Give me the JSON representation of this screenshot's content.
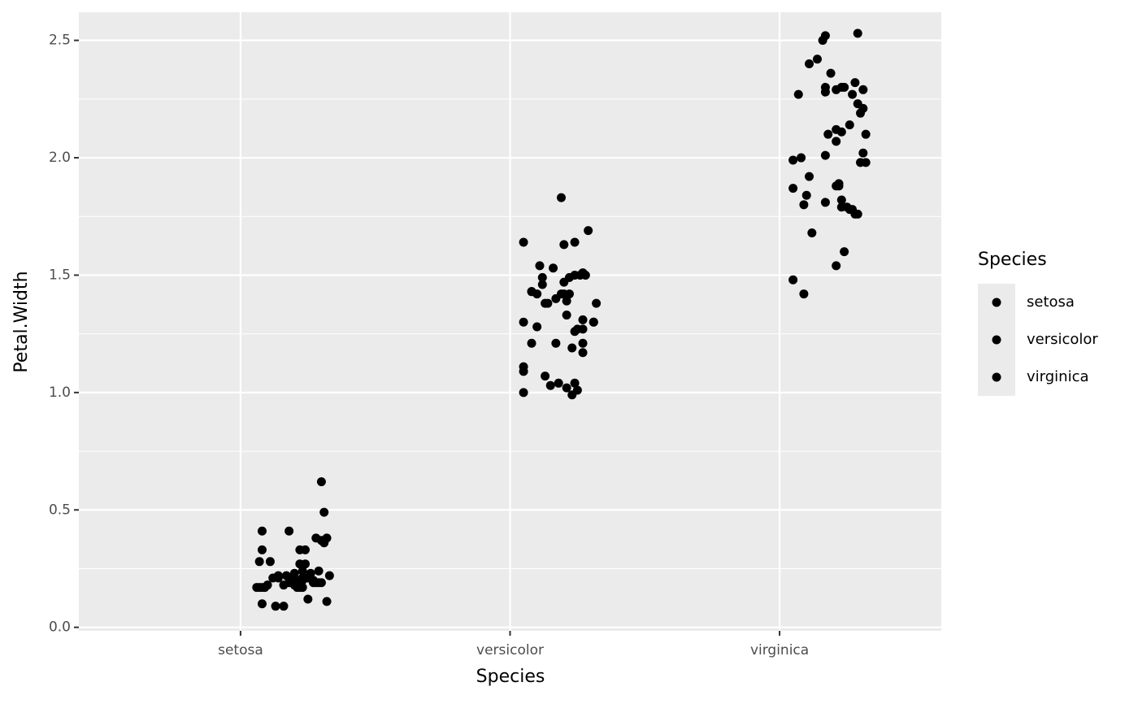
{
  "chart_data": {
    "type": "scatter",
    "x_label": "Species",
    "y_label": "Petal.Width",
    "legend_title": "Species",
    "legend_position": "right",
    "grid": true,
    "xlim": [
      0.4,
      3.6
    ],
    "ylim": [
      -0.015,
      2.62
    ],
    "xticks": [
      {
        "value": 1,
        "label": "setosa"
      },
      {
        "value": 2,
        "label": "versicolor"
      },
      {
        "value": 3,
        "label": "virginica"
      }
    ],
    "yticks": [
      {
        "value": 0,
        "label": "0.0"
      },
      {
        "value": 0.5,
        "label": "0.5"
      },
      {
        "value": 1,
        "label": "1.0"
      },
      {
        "value": 1.5,
        "label": "1.5"
      },
      {
        "value": 2,
        "label": "2.0"
      },
      {
        "value": 2.5,
        "label": "2.5"
      }
    ],
    "series": [
      {
        "name": "setosa",
        "color": "#000000",
        "x": [
          1.3,
          1.31,
          1.08,
          1.18,
          1.28,
          1.3,
          1.32,
          1.31,
          1.07,
          1.11,
          1.08,
          1.22,
          1.24,
          1.22,
          1.24,
          1.14,
          1.12,
          1.17,
          1.2,
          1.26,
          1.29,
          1.33,
          1.23,
          1.28,
          1.2,
          1.08,
          1.1,
          1.06,
          1.09,
          1.22,
          1.23,
          1.27,
          1.3,
          1.16,
          1.18,
          1.21,
          1.25,
          1.08,
          1.13,
          1.16,
          1.25,
          1.32,
          1.29,
          1.23,
          1.18,
          1.23,
          1.27,
          1.21,
          1.14,
          1.07
        ],
        "values": [
          0.62,
          0.49,
          0.41,
          0.41,
          0.38,
          0.37,
          0.38,
          0.36,
          0.28,
          0.28,
          0.33,
          0.33,
          0.33,
          0.27,
          0.27,
          0.22,
          0.21,
          0.22,
          0.23,
          0.23,
          0.24,
          0.22,
          0.21,
          0.19,
          0.18,
          0.17,
          0.18,
          0.17,
          0.17,
          0.17,
          0.17,
          0.19,
          0.19,
          0.18,
          0.19,
          0.2,
          0.21,
          0.1,
          0.09,
          0.09,
          0.12,
          0.11,
          0.19,
          0.24,
          0.21,
          0.2,
          0.2,
          0.17,
          0.21,
          0.17
        ]
      },
      {
        "name": "versicolor",
        "color": "#000000",
        "x": [
          2.19,
          2.29,
          2.05,
          2.2,
          2.24,
          2.11,
          2.16,
          2.12,
          2.12,
          2.1,
          2.08,
          2.08,
          2.2,
          2.27,
          2.24,
          2.22,
          2.26,
          2.21,
          2.2,
          2.17,
          2.14,
          2.13,
          2.32,
          2.21,
          2.05,
          2.1,
          2.27,
          2.31,
          2.27,
          2.25,
          2.24,
          2.08,
          2.17,
          2.27,
          2.23,
          2.27,
          2.05,
          2.05,
          2.13,
          2.15,
          2.18,
          2.21,
          2.24,
          2.25,
          2.05,
          2.23,
          2.31,
          2.19,
          2.22,
          2.28
        ],
        "values": [
          1.83,
          1.69,
          1.64,
          1.63,
          1.64,
          1.54,
          1.53,
          1.49,
          1.46,
          1.42,
          1.43,
          1.43,
          1.47,
          1.51,
          1.5,
          1.49,
          1.5,
          1.39,
          1.42,
          1.4,
          1.38,
          1.38,
          1.38,
          1.33,
          1.3,
          1.28,
          1.31,
          1.3,
          1.27,
          1.27,
          1.26,
          1.21,
          1.21,
          1.21,
          1.19,
          1.17,
          1.11,
          1.09,
          1.07,
          1.03,
          1.04,
          1.02,
          1.04,
          1.01,
          1.0,
          0.99,
          1.3,
          1.42,
          1.42,
          1.5
        ]
      },
      {
        "name": "virginica",
        "color": "#000000",
        "x": [
          3.29,
          3.17,
          3.16,
          3.14,
          3.11,
          3.19,
          3.17,
          3.23,
          3.28,
          3.31,
          3.27,
          3.24,
          3.21,
          3.07,
          3.29,
          3.31,
          3.3,
          3.26,
          3.21,
          3.18,
          3.23,
          3.32,
          3.21,
          3.17,
          3.31,
          3.3,
          3.32,
          3.05,
          3.08,
          3.11,
          3.22,
          3.22,
          3.21,
          3.05,
          3.1,
          3.09,
          3.17,
          3.23,
          3.23,
          3.25,
          3.27,
          3.28,
          3.29,
          3.12,
          3.24,
          3.21,
          3.05,
          3.09,
          3.17,
          3.26
        ],
        "values": [
          2.53,
          2.52,
          2.5,
          2.42,
          2.4,
          2.36,
          2.3,
          2.3,
          2.32,
          2.29,
          2.27,
          2.3,
          2.29,
          2.27,
          2.23,
          2.21,
          2.19,
          2.14,
          2.12,
          2.1,
          2.11,
          2.1,
          2.07,
          2.01,
          2.02,
          1.98,
          1.98,
          1.99,
          2.0,
          1.92,
          1.89,
          1.88,
          1.88,
          1.87,
          1.84,
          1.8,
          1.81,
          1.82,
          1.79,
          1.79,
          1.78,
          1.76,
          1.76,
          1.68,
          1.6,
          1.54,
          1.48,
          1.42,
          2.28,
          1.78
        ]
      }
    ]
  }
}
